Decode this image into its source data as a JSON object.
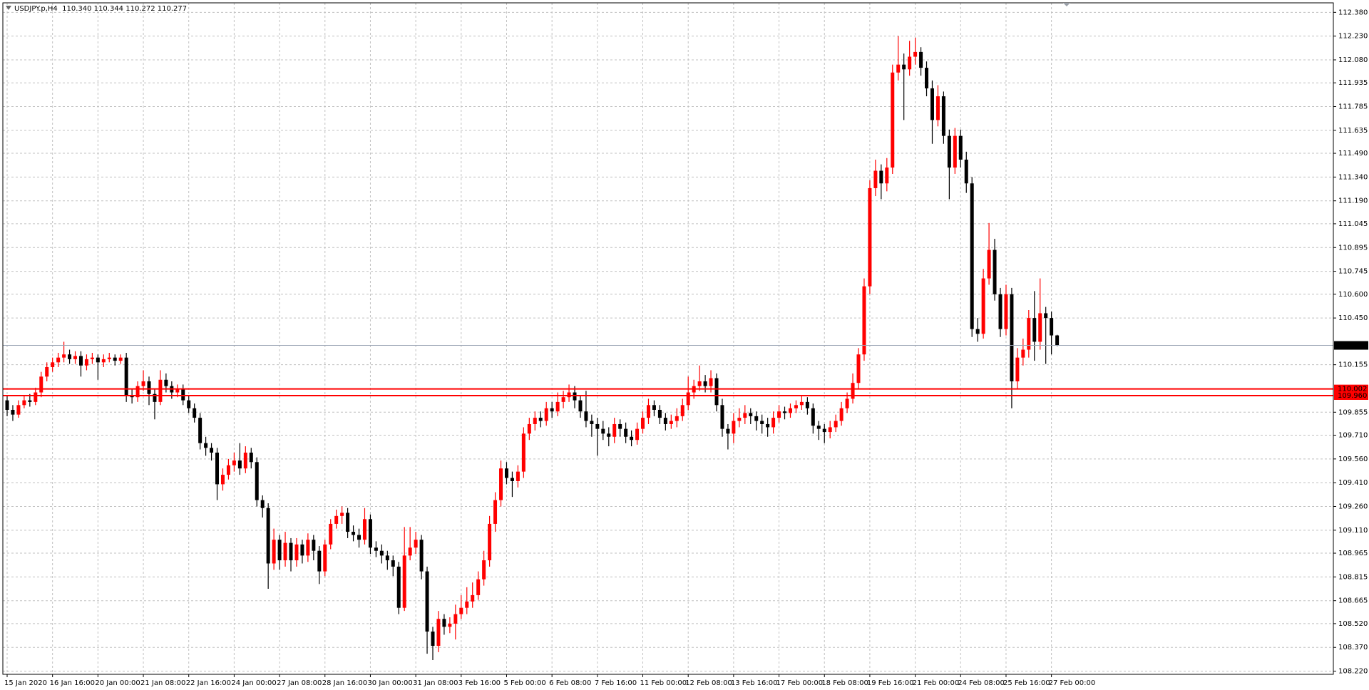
{
  "chart_data": {
    "type": "candlestick",
    "title": "USDJPY.p,H4  110.340 110.344 110.272 110.277",
    "up_color": "#ff0000",
    "down_color": "#000000",
    "grid": true,
    "ylim": [
      108.2,
      112.44
    ],
    "yticks": [
      {
        "value": 112.38,
        "label": "112.380"
      },
      {
        "value": 112.23,
        "label": "112.230"
      },
      {
        "value": 112.08,
        "label": "112.080"
      },
      {
        "value": 111.935,
        "label": "111.935"
      },
      {
        "value": 111.785,
        "label": "111.785"
      },
      {
        "value": 111.635,
        "label": "111.635"
      },
      {
        "value": 111.49,
        "label": "111.490"
      },
      {
        "value": 111.34,
        "label": "111.340"
      },
      {
        "value": 111.19,
        "label": "111.190"
      },
      {
        "value": 111.045,
        "label": "111.045"
      },
      {
        "value": 110.895,
        "label": "110.895"
      },
      {
        "value": 110.745,
        "label": "110.745"
      },
      {
        "value": 110.6,
        "label": "110.600"
      },
      {
        "value": 110.45,
        "label": "110.450"
      },
      {
        "value": 110.155,
        "label": "110.155"
      },
      {
        "value": 109.855,
        "label": "109.855"
      },
      {
        "value": 109.71,
        "label": "109.710"
      },
      {
        "value": 109.56,
        "label": "109.560"
      },
      {
        "value": 109.41,
        "label": "109.410"
      },
      {
        "value": 109.26,
        "label": "109.260"
      },
      {
        "value": 109.11,
        "label": "109.110"
      },
      {
        "value": 108.965,
        "label": "108.965"
      },
      {
        "value": 108.815,
        "label": "108.815"
      },
      {
        "value": 108.665,
        "label": "108.665"
      },
      {
        "value": 108.52,
        "label": "108.520"
      },
      {
        "value": 108.37,
        "label": "108.370"
      },
      {
        "value": 108.22,
        "label": "108.220"
      }
    ],
    "hlines": [
      {
        "value": 110.277,
        "label": "110.277",
        "color": "#9aa4b4",
        "label_bg": "#000000"
      },
      {
        "value": 110.002,
        "label": "110.002",
        "color": "#ff0000",
        "label_bg": "#ff0000"
      },
      {
        "value": 109.96,
        "label": "109.960",
        "color": "#ff0000",
        "label_bg": "#ff0000"
      }
    ],
    "categories": [
      "15 Jan 2020",
      null,
      null,
      null,
      null,
      null,
      null,
      null,
      "16 Jan 16:00",
      null,
      null,
      null,
      null,
      null,
      null,
      null,
      "20 Jan 00:00",
      null,
      null,
      null,
      null,
      null,
      null,
      null,
      "21 Jan 08:00",
      null,
      null,
      null,
      null,
      null,
      null,
      null,
      "22 Jan 16:00",
      null,
      null,
      null,
      null,
      null,
      null,
      null,
      "24 Jan 00:00",
      null,
      null,
      null,
      null,
      null,
      null,
      null,
      "27 Jan 08:00",
      null,
      null,
      null,
      null,
      null,
      null,
      null,
      "28 Jan 16:00",
      null,
      null,
      null,
      null,
      null,
      null,
      null,
      "30 Jan 00:00",
      null,
      null,
      null,
      null,
      null,
      null,
      null,
      "31 Jan 08:00",
      null,
      null,
      null,
      null,
      null,
      null,
      null,
      "3 Feb 16:00",
      null,
      null,
      null,
      null,
      null,
      null,
      null,
      "5 Feb 00:00",
      null,
      null,
      null,
      null,
      null,
      null,
      null,
      "6 Feb 08:00",
      null,
      null,
      null,
      null,
      null,
      null,
      null,
      "7 Feb 16:00",
      null,
      null,
      null,
      null,
      null,
      null,
      null,
      "11 Feb 00:00",
      null,
      null,
      null,
      null,
      null,
      null,
      null,
      "12 Feb 08:00",
      null,
      null,
      null,
      null,
      null,
      null,
      null,
      "13 Feb 16:00",
      null,
      null,
      null,
      null,
      null,
      null,
      null,
      "17 Feb 00:00",
      null,
      null,
      null,
      null,
      null,
      null,
      null,
      "18 Feb 08:00",
      null,
      null,
      null,
      null,
      null,
      null,
      null,
      "19 Feb 16:00",
      null,
      null,
      null,
      null,
      null,
      null,
      null,
      "21 Feb 00:00",
      null,
      null,
      null,
      null,
      null,
      null,
      null,
      "24 Feb 08:00",
      null,
      null,
      null,
      null,
      null,
      null,
      null,
      "25 Feb 16:00",
      null,
      null,
      null,
      null,
      null,
      null,
      null,
      "27 Feb 00:00",
      null
    ],
    "open": [
      109.93,
      109.87,
      109.84,
      109.9,
      109.93,
      109.92,
      109.98,
      110.08,
      110.14,
      110.17,
      110.2,
      110.22,
      110.19,
      110.21,
      110.15,
      110.19,
      110.2,
      110.17,
      110.19,
      110.2,
      110.18,
      110.2,
      109.96,
      109.95,
      110.02,
      110.05,
      109.97,
      109.92,
      110.06,
      110.02,
      109.98,
      110.0,
      109.93,
      109.88,
      109.82,
      109.66,
      109.63,
      109.6,
      109.4,
      109.46,
      109.52,
      109.55,
      109.5,
      109.6,
      109.54,
      109.3,
      109.25,
      108.9,
      109.05,
      108.92,
      109.03,
      108.92,
      109.02,
      108.95,
      109.05,
      108.98,
      108.85,
      109.02,
      109.15,
      109.2,
      109.22,
      109.1,
      109.08,
      109.05,
      109.18,
      109.0,
      108.98,
      108.95,
      108.92,
      108.88,
      108.62,
      108.95,
      109.0,
      109.05,
      108.85,
      108.47,
      108.38,
      108.55,
      108.5,
      108.52,
      108.58,
      108.62,
      108.66,
      108.7,
      108.8,
      108.92,
      109.15,
      109.3,
      109.5,
      109.44,
      109.42,
      109.48,
      109.72,
      109.78,
      109.82,
      109.8,
      109.88,
      109.86,
      109.92,
      109.95,
      109.98,
      109.93,
      109.86,
      109.8,
      109.78,
      109.75,
      109.72,
      109.7,
      109.78,
      109.75,
      109.7,
      109.68,
      109.75,
      109.82,
      109.9,
      109.87,
      109.82,
      109.78,
      109.8,
      109.83,
      109.9,
      109.98,
      110.02,
      110.05,
      110.02,
      110.07,
      109.9,
      109.75,
      109.72,
      109.8,
      109.82,
      109.85,
      109.83,
      109.8,
      109.78,
      109.76,
      109.82,
      109.86,
      109.85,
      109.88,
      109.9,
      109.92,
      109.88,
      109.77,
      109.75,
      109.73,
      109.76,
      109.8,
      109.88,
      109.94,
      110.04,
      110.22,
      110.65,
      111.27,
      111.38,
      111.3,
      111.4,
      112.0,
      112.05,
      112.02,
      112.1,
      112.13,
      112.03,
      111.9,
      111.7,
      111.85,
      111.6,
      111.4,
      111.6,
      111.45,
      111.3,
      110.38,
      110.35,
      110.7,
      110.88,
      110.6,
      110.38,
      110.6,
      110.05,
      110.2,
      110.25,
      110.45,
      110.3,
      110.48,
      110.45,
      110.34
    ],
    "high": [
      109.96,
      109.9,
      109.93,
      109.96,
      109.97,
      110.01,
      110.11,
      110.17,
      110.2,
      110.23,
      110.3,
      110.25,
      110.24,
      110.24,
      110.22,
      110.23,
      110.22,
      110.22,
      110.23,
      110.22,
      110.22,
      110.23,
      110.0,
      110.05,
      110.12,
      110.08,
      110.0,
      110.12,
      110.1,
      110.05,
      110.03,
      110.03,
      109.96,
      109.91,
      109.85,
      109.7,
      109.66,
      109.63,
      109.5,
      109.56,
      109.6,
      109.66,
      109.64,
      109.63,
      109.57,
      109.33,
      109.28,
      109.12,
      109.08,
      109.1,
      109.06,
      109.06,
      109.05,
      109.09,
      109.08,
      109.01,
      109.05,
      109.18,
      109.24,
      109.26,
      109.25,
      109.14,
      109.12,
      109.25,
      109.21,
      109.04,
      109.02,
      108.98,
      108.95,
      108.91,
      109.13,
      109.13,
      109.1,
      109.08,
      108.88,
      108.5,
      108.6,
      108.58,
      108.56,
      108.64,
      108.7,
      108.75,
      108.78,
      108.85,
      108.98,
      109.2,
      109.35,
      109.55,
      109.54,
      109.48,
      109.52,
      109.76,
      109.82,
      109.86,
      109.86,
      109.92,
      109.92,
      109.98,
      109.99,
      110.03,
      110.02,
      109.96,
      109.99,
      109.84,
      109.82,
      109.8,
      109.76,
      109.82,
      109.81,
      109.79,
      109.74,
      109.79,
      109.86,
      109.94,
      109.93,
      109.9,
      109.85,
      109.84,
      109.88,
      109.94,
      110.08,
      110.06,
      110.15,
      110.09,
      110.12,
      110.1,
      109.94,
      109.78,
      109.85,
      109.88,
      109.9,
      109.88,
      109.86,
      109.84,
      109.82,
      109.86,
      109.9,
      109.89,
      109.91,
      109.93,
      109.96,
      109.95,
      109.91,
      109.8,
      109.78,
      109.8,
      109.84,
      109.92,
      109.98,
      110.1,
      110.26,
      110.7,
      111.32,
      111.45,
      111.42,
      111.46,
      112.05,
      112.23,
      112.12,
      112.2,
      112.22,
      112.16,
      112.07,
      111.95,
      111.92,
      111.88,
      111.64,
      111.65,
      111.64,
      111.5,
      111.34,
      110.45,
      110.76,
      111.05,
      110.95,
      110.64,
      110.66,
      110.64,
      110.26,
      110.32,
      110.5,
      110.62,
      110.7,
      110.52,
      110.49,
      110.344
    ],
    "low": [
      109.83,
      109.8,
      109.82,
      109.88,
      109.89,
      109.9,
      109.95,
      110.05,
      110.11,
      110.14,
      110.17,
      110.16,
      110.16,
      110.08,
      110.12,
      110.16,
      110.06,
      110.14,
      110.17,
      110.15,
      110.16,
      109.92,
      109.91,
      109.92,
      109.99,
      109.9,
      109.81,
      109.9,
      109.98,
      109.94,
      109.95,
      109.9,
      109.85,
      109.79,
      109.62,
      109.58,
      109.55,
      109.3,
      109.36,
      109.43,
      109.48,
      109.46,
      109.47,
      109.5,
      109.26,
      109.19,
      108.74,
      108.86,
      108.86,
      108.88,
      108.85,
      108.88,
      108.9,
      108.91,
      108.92,
      108.77,
      108.82,
      108.99,
      109.12,
      109.15,
      109.06,
      109.04,
      109.0,
      109.02,
      108.96,
      108.94,
      108.9,
      108.86,
      108.82,
      108.58,
      108.6,
      108.92,
      108.96,
      108.8,
      108.33,
      108.29,
      108.34,
      108.45,
      108.46,
      108.42,
      108.55,
      108.58,
      108.62,
      108.67,
      108.76,
      108.88,
      109.1,
      109.26,
      109.4,
      109.32,
      109.38,
      109.44,
      109.68,
      109.74,
      109.76,
      109.77,
      109.82,
      109.83,
      109.88,
      109.92,
      109.88,
      109.82,
      109.76,
      109.7,
      109.58,
      109.68,
      109.64,
      109.66,
      109.7,
      109.66,
      109.64,
      109.65,
      109.72,
      109.78,
      109.83,
      109.78,
      109.74,
      109.75,
      109.76,
      109.8,
      109.87,
      109.94,
      109.99,
      109.98,
      109.98,
      109.86,
      109.7,
      109.62,
      109.66,
      109.76,
      109.78,
      109.78,
      109.74,
      109.72,
      109.7,
      109.72,
      109.79,
      109.81,
      109.82,
      109.85,
      109.87,
      109.84,
      109.72,
      109.68,
      109.66,
      109.69,
      109.73,
      109.77,
      109.85,
      109.91,
      110.0,
      110.18,
      110.6,
      111.22,
      111.2,
      111.25,
      111.36,
      111.95,
      111.7,
      111.98,
      112.05,
      111.98,
      111.85,
      111.55,
      111.66,
      111.55,
      111.2,
      111.36,
      111.4,
      111.24,
      110.33,
      110.3,
      110.32,
      110.66,
      110.56,
      110.33,
      110.34,
      109.88,
      110.0,
      110.15,
      110.2,
      110.18,
      110.25,
      110.16,
      110.22,
      110.272
    ],
    "close": [
      109.87,
      109.84,
      109.9,
      109.93,
      109.92,
      109.98,
      110.08,
      110.14,
      110.17,
      110.2,
      110.22,
      110.19,
      110.21,
      110.15,
      110.19,
      110.2,
      110.17,
      110.19,
      110.2,
      110.18,
      110.2,
      109.96,
      109.95,
      110.02,
      110.05,
      109.97,
      109.92,
      110.06,
      110.02,
      109.98,
      110.0,
      109.93,
      109.88,
      109.82,
      109.66,
      109.63,
      109.6,
      109.4,
      109.46,
      109.52,
      109.55,
      109.5,
      109.6,
      109.54,
      109.3,
      109.25,
      108.9,
      109.05,
      108.92,
      109.03,
      108.92,
      109.02,
      108.95,
      109.05,
      108.98,
      108.85,
      109.02,
      109.15,
      109.2,
      109.22,
      109.1,
      109.08,
      109.05,
      109.18,
      109.0,
      108.98,
      108.95,
      108.92,
      108.88,
      108.62,
      108.95,
      109.0,
      109.05,
      108.85,
      108.47,
      108.38,
      108.55,
      108.5,
      108.52,
      108.58,
      108.62,
      108.66,
      108.7,
      108.8,
      108.92,
      109.15,
      109.3,
      109.5,
      109.44,
      109.42,
      109.48,
      109.72,
      109.78,
      109.82,
      109.8,
      109.88,
      109.86,
      109.92,
      109.95,
      109.98,
      109.93,
      109.86,
      109.8,
      109.78,
      109.75,
      109.72,
      109.7,
      109.78,
      109.75,
      109.7,
      109.68,
      109.75,
      109.82,
      109.9,
      109.87,
      109.82,
      109.78,
      109.8,
      109.83,
      109.9,
      109.98,
      110.02,
      110.05,
      110.02,
      110.07,
      109.9,
      109.75,
      109.72,
      109.8,
      109.82,
      109.85,
      109.83,
      109.8,
      109.78,
      109.76,
      109.82,
      109.86,
      109.85,
      109.88,
      109.9,
      109.92,
      109.88,
      109.77,
      109.75,
      109.73,
      109.76,
      109.8,
      109.88,
      109.94,
      110.04,
      110.22,
      110.65,
      111.27,
      111.38,
      111.3,
      111.4,
      112.0,
      112.05,
      112.02,
      112.1,
      112.13,
      112.03,
      111.9,
      111.7,
      111.85,
      111.6,
      111.4,
      111.6,
      111.45,
      111.3,
      110.38,
      110.35,
      110.7,
      110.88,
      110.6,
      110.38,
      110.6,
      110.05,
      110.2,
      110.25,
      110.45,
      110.3,
      110.48,
      110.45,
      110.34,
      110.277
    ]
  }
}
